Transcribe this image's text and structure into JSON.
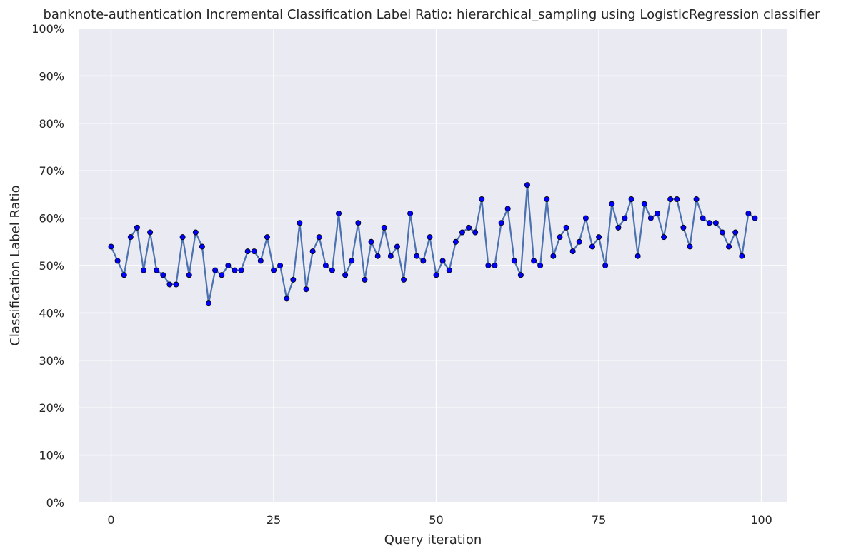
{
  "chart_data": {
    "type": "line",
    "title": "banknote-authentication Incremental Classification Label Ratio: hierarchical_sampling using LogisticRegression classifier",
    "xlabel": "Query iteration",
    "ylabel": "Classification Label Ratio",
    "xlim": [
      -5,
      104
    ],
    "ylim": [
      0,
      100
    ],
    "xticks": [
      0,
      25,
      50,
      75,
      100
    ],
    "xtick_labels": [
      "0",
      "25",
      "50",
      "75",
      "100"
    ],
    "yticks": [
      0,
      10,
      20,
      30,
      40,
      50,
      60,
      70,
      80,
      90,
      100
    ],
    "ytick_labels": [
      "0%",
      "10%",
      "20%",
      "30%",
      "40%",
      "50%",
      "60%",
      "70%",
      "80%",
      "90%",
      "100%"
    ],
    "grid": true,
    "colors": {
      "background": "#eaeaf2",
      "grid": "#ffffff",
      "line": "#4c72b0",
      "marker": "#0000ff"
    },
    "series": [
      {
        "x": [
          0,
          1,
          2,
          3,
          4,
          5,
          6,
          7,
          8,
          9,
          10,
          11,
          12,
          13,
          14,
          15,
          16,
          17,
          18,
          19,
          20,
          21,
          22,
          23,
          24,
          25,
          26,
          27,
          28,
          29,
          30,
          31,
          32,
          33,
          34,
          35,
          36,
          37,
          38,
          39,
          40,
          41,
          42,
          43,
          44,
          45,
          46,
          47,
          48,
          49,
          50,
          51,
          52,
          53,
          54,
          55,
          56,
          57,
          58,
          59,
          60,
          61,
          62,
          63,
          64,
          65,
          66,
          67,
          68,
          69,
          70,
          71,
          72,
          73,
          74,
          75,
          76,
          77,
          78,
          79,
          80,
          81,
          82,
          83,
          84,
          85,
          86,
          87,
          88,
          89,
          90,
          91,
          92,
          93,
          94,
          95,
          96,
          97,
          98,
          99
        ],
        "values": [
          54,
          51,
          48,
          56,
          58,
          49,
          57,
          49,
          48,
          46,
          46,
          56,
          48,
          57,
          54,
          42,
          49,
          48,
          50,
          49,
          49,
          53,
          53,
          51,
          56,
          49,
          50,
          43,
          47,
          59,
          45,
          53,
          56,
          50,
          49,
          61,
          48,
          51,
          59,
          47,
          55,
          52,
          58,
          52,
          54,
          47,
          61,
          52,
          51,
          56,
          48,
          51,
          49,
          55,
          57,
          58,
          57,
          64,
          50,
          50,
          59,
          62,
          51,
          48,
          67,
          51,
          50,
          64,
          52,
          56,
          58,
          53,
          55,
          60,
          54,
          56,
          50,
          63,
          58,
          60,
          64,
          52,
          63,
          60,
          61,
          56,
          64,
          64,
          58,
          54,
          64,
          60,
          59,
          59,
          57,
          54,
          57,
          52,
          61,
          60
        ]
      }
    ]
  }
}
